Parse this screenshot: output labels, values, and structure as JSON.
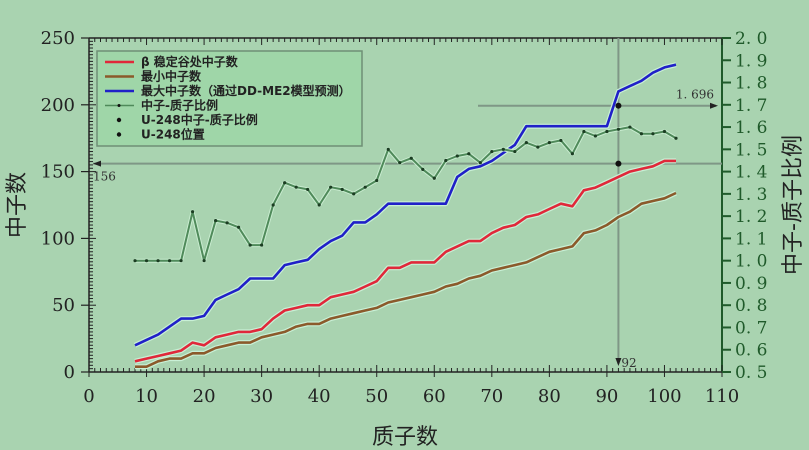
{
  "chart_data": {
    "type": "line",
    "title": "",
    "xlabel": "质子数",
    "ylabel": "中子数",
    "y2label": "中子-质子比例",
    "xlim": [
      0,
      110
    ],
    "ylim": [
      0,
      250
    ],
    "y2lim": [
      0.5,
      2.0
    ],
    "xticks": [
      0,
      10,
      20,
      30,
      40,
      50,
      60,
      70,
      80,
      90,
      100,
      110
    ],
    "yticks": [
      0,
      50,
      100,
      150,
      200,
      250
    ],
    "y2ticks": [
      "0.5",
      "0.6",
      "0.7",
      "0.8",
      "0.9",
      "1.0",
      "1.1",
      "1.2",
      "1.3",
      "1.4",
      "1.5",
      "1.6",
      "1.7",
      "1.8",
      "1.9",
      "2.0"
    ],
    "grid": false,
    "legend_position": "upper-left",
    "x": [
      8,
      10,
      12,
      14,
      16,
      18,
      20,
      22,
      24,
      26,
      28,
      30,
      32,
      34,
      36,
      38,
      40,
      42,
      44,
      46,
      48,
      50,
      52,
      54,
      56,
      58,
      60,
      62,
      64,
      66,
      68,
      70,
      72,
      74,
      76,
      78,
      80,
      82,
      84,
      86,
      88,
      90,
      92,
      94,
      96,
      98,
      100,
      102
    ],
    "series": [
      {
        "name": "β 稳定谷处中子数",
        "color": "#e0283a",
        "axis": "left",
        "values": [
          8,
          10,
          12,
          14,
          16,
          22,
          20,
          26,
          28,
          30,
          30,
          32,
          40,
          46,
          48,
          50,
          50,
          56,
          58,
          60,
          64,
          68,
          78,
          78,
          82,
          82,
          82,
          90,
          94,
          98,
          98,
          104,
          108,
          110,
          116,
          118,
          122,
          126,
          124,
          136,
          138,
          142,
          146,
          150,
          152,
          154,
          158,
          158
        ]
      },
      {
        "name": "最小中子数",
        "color": "#8b5a2b",
        "axis": "left",
        "values": [
          4,
          4,
          8,
          10,
          10,
          14,
          14,
          18,
          20,
          22,
          22,
          26,
          28,
          30,
          34,
          36,
          36,
          40,
          42,
          44,
          46,
          48,
          52,
          54,
          56,
          58,
          60,
          64,
          66,
          70,
          72,
          76,
          78,
          80,
          82,
          86,
          90,
          92,
          94,
          104,
          106,
          110,
          116,
          120,
          126,
          128,
          130,
          134
        ]
      },
      {
        "name": "最大中子数（通过DD-ME2模型预测）",
        "color": "#2020c8",
        "axis": "left",
        "values": [
          20,
          24,
          28,
          34,
          40,
          40,
          42,
          54,
          58,
          62,
          70,
          70,
          70,
          80,
          82,
          84,
          92,
          98,
          102,
          112,
          112,
          118,
          126,
          126,
          126,
          126,
          126,
          126,
          146,
          152,
          154,
          158,
          164,
          170,
          184,
          184,
          184,
          184,
          184,
          184,
          184,
          184,
          210,
          214,
          218,
          224,
          228,
          230
        ]
      },
      {
        "name": "中子-质子比例",
        "color": "#4f8a5a",
        "axis": "right",
        "marker": "dot",
        "values": [
          1.0,
          1.0,
          1.0,
          1.0,
          1.0,
          1.22,
          1.0,
          1.18,
          1.17,
          1.15,
          1.07,
          1.07,
          1.25,
          1.35,
          1.33,
          1.32,
          1.25,
          1.33,
          1.32,
          1.3,
          1.33,
          1.36,
          1.5,
          1.44,
          1.46,
          1.41,
          1.37,
          1.45,
          1.47,
          1.48,
          1.44,
          1.49,
          1.5,
          1.49,
          1.53,
          1.51,
          1.53,
          1.54,
          1.48,
          1.58,
          1.56,
          1.58,
          1.59,
          1.6,
          1.57,
          1.57,
          1.58,
          1.55
        ]
      }
    ],
    "points": [
      {
        "name": "U-248中子-质子比例",
        "x": 92,
        "y2": 1.696
      },
      {
        "name": "U-248位置",
        "x": 92,
        "y": 156
      }
    ],
    "annotations": [
      {
        "text": "1.696",
        "type": "horizontal-arrow",
        "axis": "right",
        "value": 1.696
      },
      {
        "text": "156",
        "type": "horizontal-arrow",
        "axis": "left",
        "value": 156
      },
      {
        "text": "92",
        "type": "vertical-arrow",
        "value": 92
      }
    ]
  },
  "legend": {
    "items": [
      {
        "label": "β 稳定谷处中子数",
        "type": "line",
        "color": "#e0283a"
      },
      {
        "label": "最小中子数",
        "type": "line",
        "color": "#8b5a2b"
      },
      {
        "label": "最大中子数（通过DD-ME2模型预测）",
        "type": "line",
        "color": "#2020c8"
      },
      {
        "label": "中子-质子比例",
        "type": "line-dot",
        "color": "#4f8a5a"
      },
      {
        "label": "U-248中子-质子比例",
        "type": "dot",
        "color": "#111111"
      },
      {
        "label": "U-248位置",
        "type": "dot",
        "color": "#111111"
      }
    ]
  },
  "colors": {
    "background": "#a9d3b0",
    "right_axis": "#1f5a2a",
    "guide_line": "#7f9786"
  }
}
